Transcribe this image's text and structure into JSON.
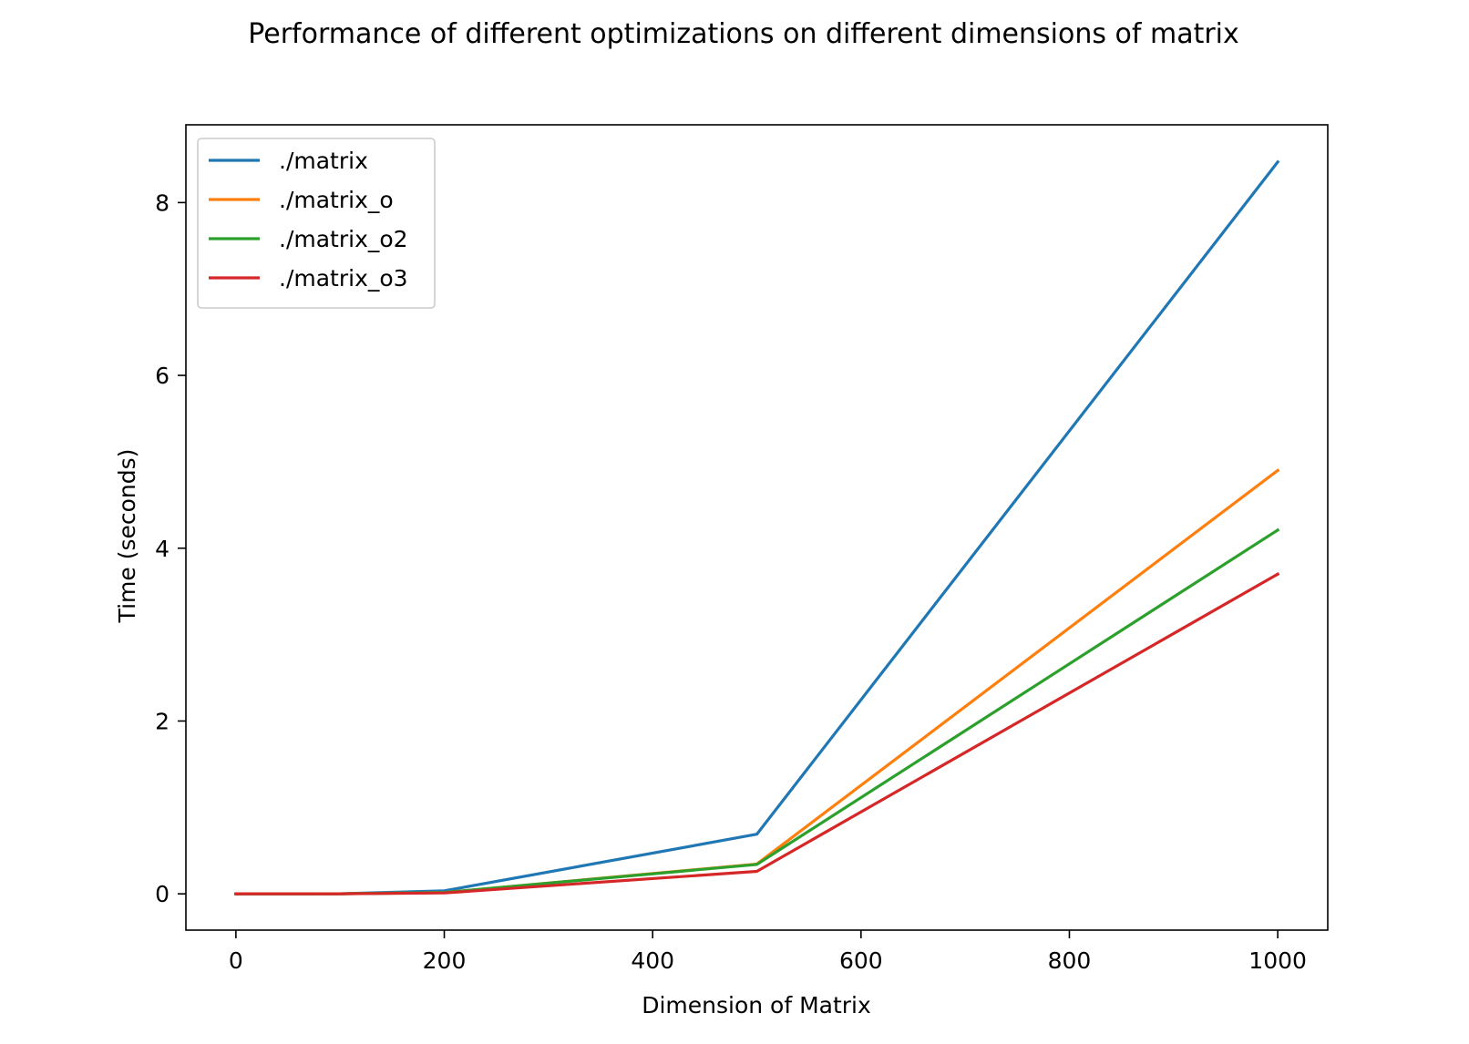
{
  "chart_data": {
    "type": "line",
    "title": "Performance of different optimizations on different dimensions of matrix",
    "xlabel": "Dimension of Matrix",
    "ylabel": "Time (seconds)",
    "x": [
      0,
      100,
      200,
      500,
      1000
    ],
    "xlim": [
      -48,
      1048
    ],
    "ylim": [
      -0.42,
      8.9
    ],
    "xticks": [
      0,
      200,
      400,
      600,
      800,
      1000
    ],
    "yticks": [
      0,
      2,
      4,
      6,
      8
    ],
    "xtick_labels": [
      "0",
      "200",
      "400",
      "600",
      "800",
      "1000"
    ],
    "ytick_labels": [
      "0",
      "2",
      "4",
      "6",
      "8"
    ],
    "grid": false,
    "legend_position": "upper left",
    "series": [
      {
        "name": "./matrix",
        "color": "#1f77b4",
        "values": [
          0.0,
          0.001,
          0.035,
          0.69,
          8.47
        ]
      },
      {
        "name": "./matrix_o",
        "color": "#ff7f0e",
        "values": [
          0.0,
          0.0005,
          0.015,
          0.345,
          4.9
        ]
      },
      {
        "name": "./matrix_o2",
        "color": "#2ca02c",
        "values": [
          0.0,
          0.0005,
          0.015,
          0.34,
          4.21
        ]
      },
      {
        "name": "./matrix_o3",
        "color": "#d62728",
        "values": [
          0.0,
          0.0005,
          0.01,
          0.26,
          3.7
        ]
      }
    ]
  }
}
